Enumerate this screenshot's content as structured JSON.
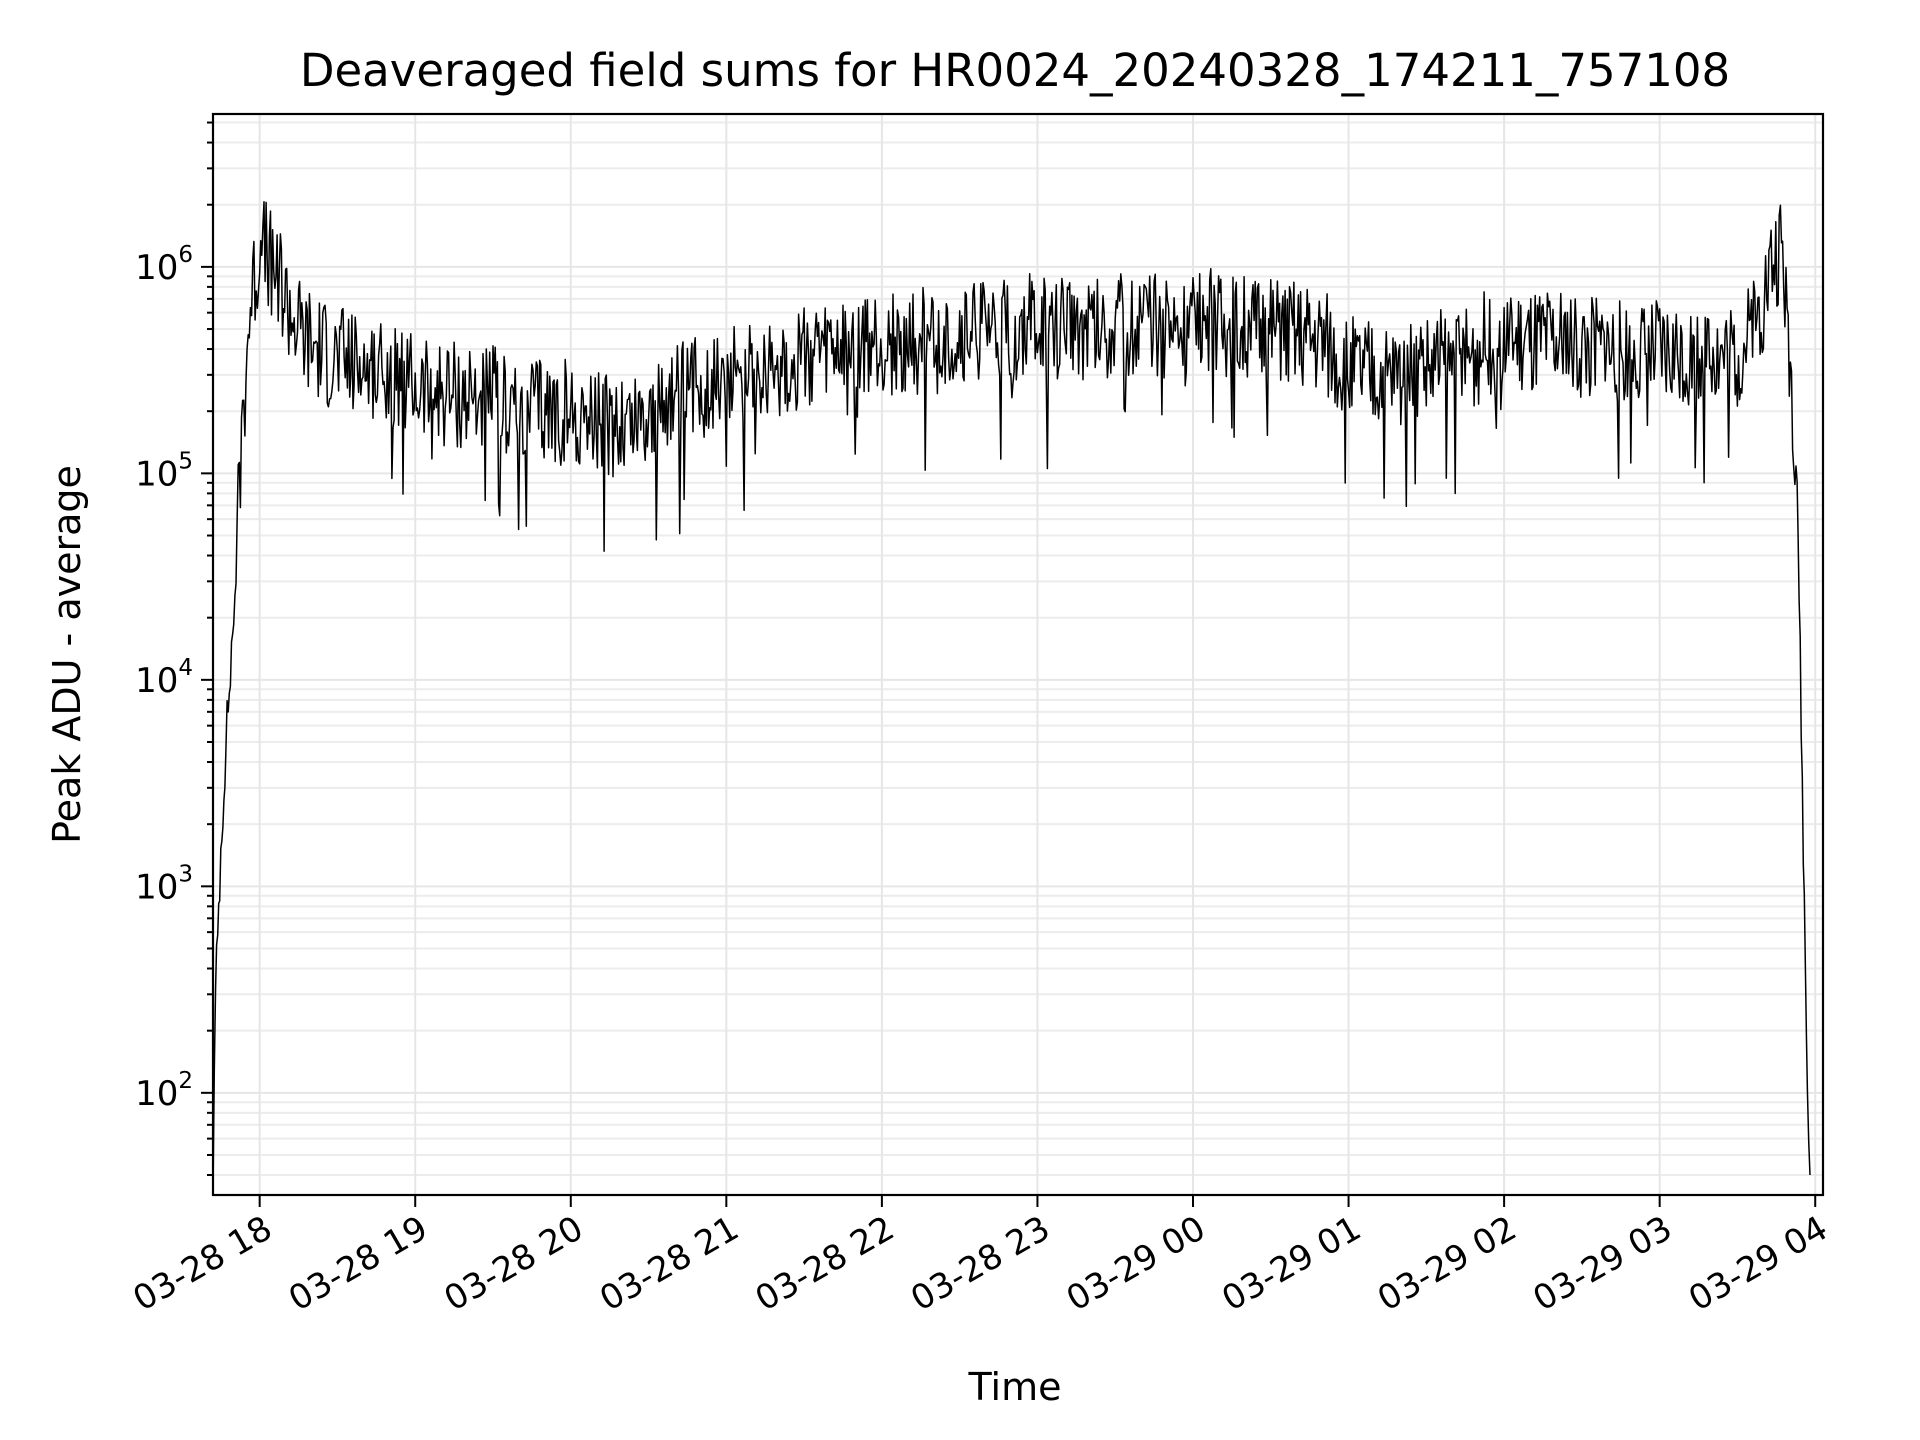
{
  "chart_data": {
    "type": "line",
    "title": "Deaveraged field sums for HR0024_20240328_174211_757108",
    "xlabel": "Time",
    "ylabel": "Peak ADU - average",
    "yscale": "log",
    "ylim": [
      32,
      5500000
    ],
    "xlim": [
      "03-28 17:42",
      "03-29 04:03"
    ],
    "grid": true,
    "x_ticks": [
      "03-28 18",
      "03-28 19",
      "03-28 20",
      "03-28 21",
      "03-28 22",
      "03-28 23",
      "03-29 00",
      "03-29 01",
      "03-29 02",
      "03-29 03",
      "03-29 04"
    ],
    "y_ticks": [
      {
        "base": "10",
        "exp": "2",
        "value": 100
      },
      {
        "base": "10",
        "exp": "3",
        "value": 1000
      },
      {
        "base": "10",
        "exp": "4",
        "value": 10000
      },
      {
        "base": "10",
        "exp": "5",
        "value": 100000
      },
      {
        "base": "10",
        "exp": "6",
        "value": 1000000
      }
    ],
    "line_color": "#000000",
    "series": [
      {
        "x": [
          "03-28 17:42",
          "03-28 17:43",
          "03-28 17:45",
          "03-28 17:47",
          "03-28 17:50",
          "03-28 17:53",
          "03-28 17:56",
          "03-28 18:00",
          "03-28 18:05",
          "03-28 18:08",
          "03-28 18:10",
          "03-28 18:15",
          "03-28 18:20",
          "03-28 18:30",
          "03-28 18:45",
          "03-28 19:00",
          "03-28 19:15",
          "03-28 19:30",
          "03-28 19:45",
          "03-28 20:00",
          "03-28 20:15",
          "03-28 20:30",
          "03-28 20:45",
          "03-28 21:00",
          "03-28 21:30",
          "03-28 22:00",
          "03-28 22:30",
          "03-28 23:00",
          "03-28 23:30",
          "03-29 00:00",
          "03-29 00:30",
          "03-29 00:50",
          "03-29 01:00",
          "03-29 01:15",
          "03-29 01:30",
          "03-29 02:00",
          "03-29 02:30",
          "03-29 03:00",
          "03-29 03:30",
          "03-29 03:35",
          "03-29 03:40",
          "03-29 03:43",
          "03-29 03:47",
          "03-29 03:50",
          "03-29 03:53",
          "03-29 03:55",
          "03-29 03:57",
          "03-29 03:58"
        ],
        "y": [
          40,
          300,
          1500,
          5000,
          20000,
          150000,
          600000,
          1200000,
          1100000,
          900000,
          700000,
          500000,
          420000,
          360000,
          300000,
          260000,
          240000,
          230000,
          210000,
          190000,
          170000,
          200000,
          250000,
          300000,
          360000,
          420000,
          460000,
          500000,
          520000,
          520000,
          500000,
          450000,
          320000,
          300000,
          330000,
          420000,
          420000,
          390000,
          380000,
          450000,
          700000,
          1000000,
          1200000,
          400000,
          100000,
          3000,
          100,
          40
        ]
      }
    ]
  }
}
